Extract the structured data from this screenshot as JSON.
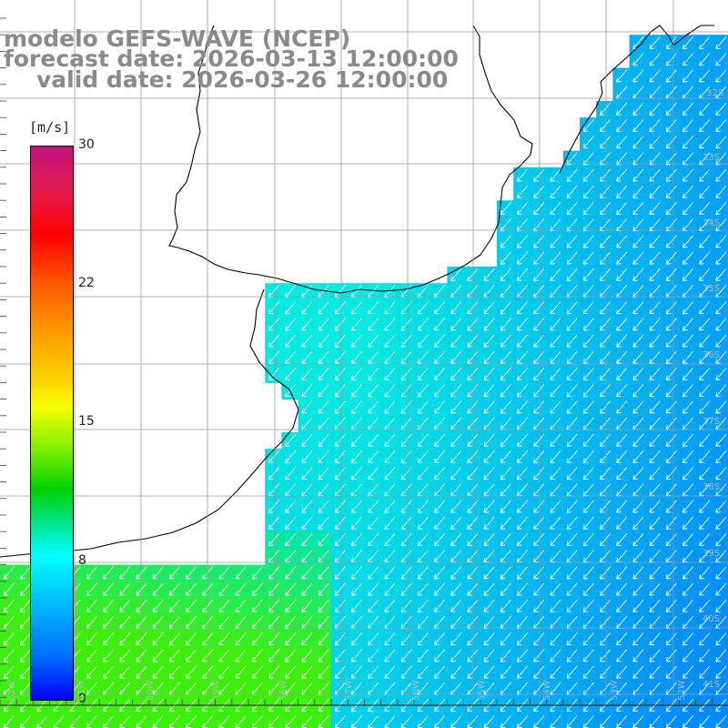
{
  "title": {
    "line1": "modelo GEFS-WAVE (NCEP)",
    "line2": "forecast date: 2026-03-13 12:00:00",
    "line3": "valid date: 2026-03-26 12:00:00"
  },
  "colorbar": {
    "unit": "[m/s]",
    "ticks": [
      "30",
      "22",
      "15",
      "8",
      "0"
    ],
    "tick_values": [
      30,
      22,
      15,
      8,
      0
    ],
    "min": 0,
    "max": 30
  },
  "lat_labels": [
    "32S",
    "33S",
    "34S",
    "35S",
    "36S",
    "37S",
    "38S",
    "39S",
    "40S",
    "41S"
  ],
  "lon_labels": [
    "62W",
    "61W",
    "60W",
    "59W",
    "58W",
    "57W",
    "56W",
    "55W",
    "54W",
    "53W",
    "52W"
  ],
  "colors": {
    "land": "#ffffff",
    "coast": "#000000",
    "grid": "#9a9a9a",
    "arrow": "#ffffff",
    "title": "#8a8a8a"
  },
  "arrow_direction": "from north-east (blowing toward south-west)"
}
